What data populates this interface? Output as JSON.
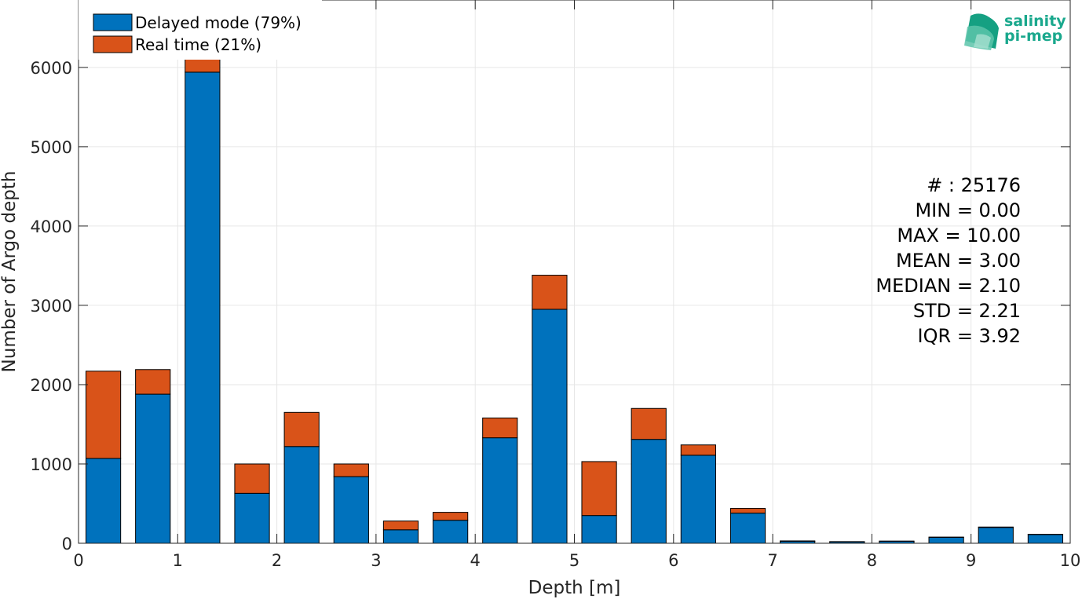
{
  "colors": {
    "delayed": "#0072BD",
    "realtime": "#D95319",
    "grid": "#e6e6e6",
    "axis": "#262626",
    "logo": "#1aa88d"
  },
  "logo": {
    "line1": "salinity",
    "line2": "pi-mep",
    "icon": "wave-logo-icon"
  },
  "stats": [
    "# : 25176",
    "MIN = 0.00",
    "MAX =  10.00",
    "MEAN = 3.00",
    "MEDIAN = 2.10",
    "STD = 2.21",
    "IQR = 3.92"
  ],
  "chart_data": {
    "type": "bar",
    "stacked": true,
    "xlabel": "Depth [m]",
    "ylabel": "Number of Argo depth",
    "xlim": [
      0,
      10
    ],
    "ylim": [
      0,
      6850
    ],
    "xticks": [
      0,
      1,
      2,
      3,
      4,
      5,
      6,
      7,
      8,
      9,
      10
    ],
    "yticks": [
      0,
      1000,
      2000,
      3000,
      4000,
      5000,
      6000
    ],
    "grid": true,
    "legend_position": "top-left",
    "bin_width": 0.5,
    "x": [
      0.25,
      0.75,
      1.25,
      1.75,
      2.25,
      2.75,
      3.25,
      3.75,
      4.25,
      4.75,
      5.25,
      5.75,
      6.25,
      6.75,
      7.25,
      7.75,
      8.25,
      8.75,
      9.25,
      9.75
    ],
    "series": [
      {
        "name": "Delayed mode (79%)",
        "values": [
          1070,
          1880,
          5940,
          630,
          1220,
          840,
          170,
          290,
          1330,
          2950,
          350,
          1310,
          1110,
          380,
          25,
          18,
          25,
          75,
          200,
          110
        ]
      },
      {
        "name": "Real time (21%)",
        "values": [
          1100,
          310,
          700,
          370,
          430,
          160,
          110,
          100,
          250,
          430,
          680,
          390,
          130,
          60,
          5,
          3,
          3,
          3,
          5,
          3
        ]
      }
    ]
  }
}
